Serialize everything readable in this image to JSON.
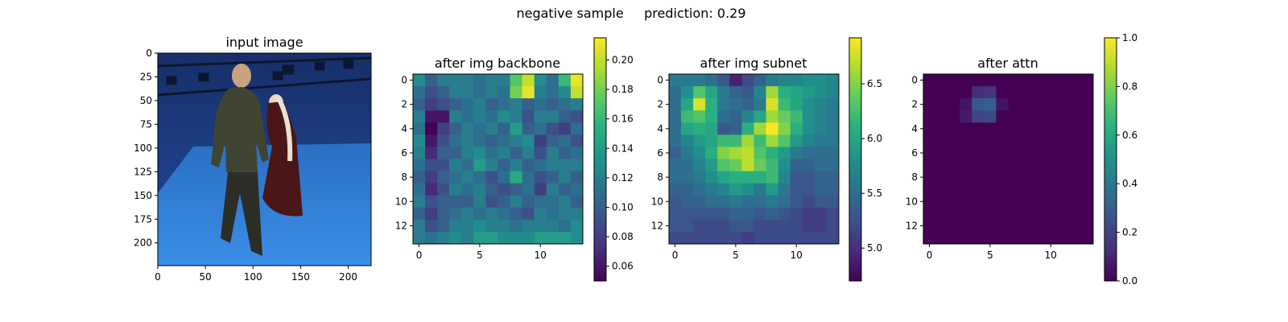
{
  "figure": {
    "suptitle": "negative sample     prediction: 0.29"
  },
  "chart_data": [
    {
      "type": "image",
      "title": "input image",
      "content": "photo: two people standing on a blue floor in a motion-capture studio",
      "xlim": [
        0,
        224
      ],
      "ylim": [
        224,
        0
      ],
      "x_ticks": [
        "0",
        "50",
        "100",
        "150",
        "200"
      ],
      "y_ticks": [
        "0",
        "25",
        "50",
        "75",
        "100",
        "125",
        "150",
        "175",
        "200"
      ],
      "colors": {
        "backdrop": "#1d3e86",
        "floor": "#2f7fd6",
        "rig": "#0c1630"
      }
    },
    {
      "type": "heatmap",
      "title": "after img backbone",
      "colormap": "viridis",
      "vmin": 0.05,
      "vmax": 0.215,
      "x_ticks": [
        "0",
        "5",
        "10"
      ],
      "y_ticks": [
        "0",
        "2",
        "4",
        "6",
        "8",
        "10",
        "12"
      ],
      "colorbar_ticks": [
        "0.06",
        "0.08",
        "0.10",
        "0.12",
        "0.14",
        "0.16",
        "0.18",
        "0.20"
      ],
      "values": [
        [
          0.13,
          0.1,
          0.12,
          0.12,
          0.12,
          0.11,
          0.12,
          0.12,
          0.17,
          0.2,
          0.13,
          0.11,
          0.16,
          0.21
        ],
        [
          0.11,
          0.09,
          0.1,
          0.12,
          0.12,
          0.11,
          0.12,
          0.11,
          0.18,
          0.21,
          0.12,
          0.11,
          0.13,
          0.2
        ],
        [
          0.1,
          0.08,
          0.09,
          0.1,
          0.11,
          0.12,
          0.1,
          0.11,
          0.12,
          0.1,
          0.11,
          0.1,
          0.11,
          0.12
        ],
        [
          0.12,
          0.06,
          0.06,
          0.12,
          0.11,
          0.12,
          0.11,
          0.13,
          0.12,
          0.09,
          0.12,
          0.12,
          0.1,
          0.09
        ],
        [
          0.11,
          0.05,
          0.08,
          0.1,
          0.12,
          0.11,
          0.12,
          0.1,
          0.14,
          0.1,
          0.11,
          0.09,
          0.08,
          0.11
        ],
        [
          0.13,
          0.06,
          0.09,
          0.11,
          0.12,
          0.11,
          0.1,
          0.11,
          0.12,
          0.13,
          0.08,
          0.1,
          0.11,
          0.09
        ],
        [
          0.12,
          0.07,
          0.1,
          0.1,
          0.12,
          0.13,
          0.11,
          0.12,
          0.1,
          0.12,
          0.09,
          0.12,
          0.1,
          0.11
        ],
        [
          0.11,
          0.09,
          0.09,
          0.12,
          0.11,
          0.14,
          0.12,
          0.1,
          0.12,
          0.1,
          0.11,
          0.12,
          0.12,
          0.12
        ],
        [
          0.1,
          0.08,
          0.1,
          0.11,
          0.12,
          0.11,
          0.09,
          0.11,
          0.15,
          0.11,
          0.09,
          0.1,
          0.12,
          0.1
        ],
        [
          0.11,
          0.07,
          0.09,
          0.12,
          0.11,
          0.12,
          0.1,
          0.09,
          0.1,
          0.11,
          0.08,
          0.12,
          0.1,
          0.11
        ],
        [
          0.12,
          0.09,
          0.1,
          0.1,
          0.1,
          0.12,
          0.09,
          0.1,
          0.12,
          0.1,
          0.11,
          0.11,
          0.12,
          0.1
        ],
        [
          0.1,
          0.08,
          0.1,
          0.11,
          0.12,
          0.11,
          0.12,
          0.11,
          0.1,
          0.09,
          0.12,
          0.11,
          0.12,
          0.12
        ],
        [
          0.12,
          0.09,
          0.1,
          0.12,
          0.12,
          0.13,
          0.12,
          0.12,
          0.11,
          0.12,
          0.12,
          0.12,
          0.11,
          0.13
        ],
        [
          0.12,
          0.11,
          0.12,
          0.13,
          0.12,
          0.14,
          0.14,
          0.13,
          0.13,
          0.13,
          0.14,
          0.14,
          0.14,
          0.13
        ]
      ]
    },
    {
      "type": "heatmap",
      "title": "after img subnet",
      "colormap": "viridis",
      "vmin": 4.7,
      "vmax": 6.92,
      "x_ticks": [
        "0",
        "5",
        "10"
      ],
      "y_ticks": [
        "0",
        "2",
        "4",
        "6",
        "8",
        "10",
        "12"
      ],
      "colorbar_ticks": [
        "5.0",
        "5.5",
        "6.0",
        "6.5"
      ],
      "values": [
        [
          5.6,
          5.6,
          5.6,
          5.5,
          5.3,
          4.9,
          5.2,
          5.4,
          5.6,
          5.7,
          5.7,
          5.8,
          5.8,
          5.7
        ],
        [
          5.5,
          5.8,
          6.3,
          6.0,
          5.6,
          5.4,
          5.3,
          5.7,
          6.6,
          6.1,
          6.0,
          5.9,
          5.8,
          5.7
        ],
        [
          5.5,
          6.0,
          6.8,
          6.1,
          5.6,
          5.5,
          5.4,
          5.6,
          6.8,
          6.2,
          6.0,
          5.8,
          5.7,
          5.6
        ],
        [
          5.5,
          6.2,
          6.3,
          6.1,
          5.5,
          5.4,
          5.7,
          6.0,
          6.6,
          6.4,
          6.2,
          5.8,
          5.7,
          5.6
        ],
        [
          5.5,
          6.0,
          6.1,
          6.0,
          5.3,
          5.4,
          6.1,
          6.6,
          6.9,
          6.5,
          6.1,
          5.8,
          5.7,
          5.6
        ],
        [
          5.5,
          5.7,
          5.9,
          6.0,
          6.2,
          6.2,
          6.6,
          6.2,
          6.6,
          6.3,
          5.9,
          5.7,
          5.6,
          5.6
        ],
        [
          5.4,
          5.6,
          5.8,
          6.1,
          6.5,
          6.6,
          6.7,
          6.3,
          6.1,
          5.9,
          5.6,
          5.5,
          5.5,
          5.5
        ],
        [
          5.5,
          5.5,
          5.7,
          5.9,
          6.3,
          6.4,
          6.7,
          6.4,
          6.2,
          5.8,
          5.4,
          5.4,
          5.5,
          5.5
        ],
        [
          5.5,
          5.5,
          5.6,
          5.8,
          6.0,
          6.1,
          6.1,
          6.1,
          6.2,
          5.7,
          5.3,
          5.3,
          5.4,
          5.4
        ],
        [
          5.4,
          5.4,
          5.5,
          5.6,
          5.7,
          5.9,
          5.8,
          5.6,
          5.9,
          5.6,
          5.3,
          5.3,
          5.4,
          5.4
        ],
        [
          5.3,
          5.4,
          5.4,
          5.5,
          5.5,
          5.6,
          5.5,
          5.5,
          5.6,
          5.5,
          5.3,
          5.2,
          5.3,
          5.3
        ],
        [
          5.3,
          5.3,
          5.3,
          5.3,
          5.3,
          5.4,
          5.4,
          5.3,
          5.4,
          5.3,
          5.2,
          5.1,
          5.1,
          5.2
        ],
        [
          5.3,
          5.3,
          5.2,
          5.2,
          5.2,
          5.3,
          5.3,
          5.2,
          5.2,
          5.2,
          5.2,
          5.1,
          5.1,
          5.2
        ],
        [
          5.2,
          5.2,
          5.2,
          5.2,
          5.2,
          5.2,
          5.1,
          5.2,
          5.2,
          5.2,
          5.2,
          5.2,
          5.2,
          5.2
        ]
      ]
    },
    {
      "type": "heatmap",
      "title": "after attn",
      "colormap": "viridis",
      "vmin": 0.0,
      "vmax": 1.0,
      "x_ticks": [
        "0",
        "5",
        "10"
      ],
      "y_ticks": [
        "0",
        "2",
        "4",
        "6",
        "8",
        "10",
        "12"
      ],
      "colorbar_ticks": [
        "0.0",
        "0.2",
        "0.4",
        "0.6",
        "0.8",
        "1.0"
      ],
      "values": [
        [
          0,
          0,
          0,
          0,
          0,
          0,
          0,
          0,
          0,
          0,
          0,
          0,
          0,
          0
        ],
        [
          0,
          0,
          0,
          0,
          0.13,
          0.15,
          0,
          0,
          0,
          0,
          0,
          0,
          0,
          0
        ],
        [
          0,
          0,
          0,
          0.05,
          0.27,
          0.3,
          0.05,
          0,
          0,
          0,
          0,
          0,
          0,
          0
        ],
        [
          0,
          0,
          0,
          0.07,
          0.2,
          0.22,
          0,
          0,
          0,
          0,
          0,
          0,
          0,
          0
        ],
        [
          0,
          0,
          0,
          0,
          0,
          0,
          0,
          0,
          0,
          0,
          0,
          0,
          0,
          0
        ],
        [
          0,
          0,
          0,
          0,
          0,
          0,
          0,
          0,
          0,
          0,
          0,
          0,
          0,
          0
        ],
        [
          0,
          0,
          0,
          0,
          0,
          0,
          0,
          0,
          0,
          0,
          0,
          0,
          0,
          0
        ],
        [
          0,
          0,
          0,
          0,
          0,
          0,
          0,
          0,
          0,
          0,
          0,
          0,
          0,
          0
        ],
        [
          0,
          0,
          0,
          0,
          0,
          0,
          0,
          0,
          0,
          0,
          0,
          0,
          0,
          0
        ],
        [
          0,
          0,
          0,
          0,
          0,
          0,
          0,
          0,
          0,
          0,
          0,
          0,
          0,
          0
        ],
        [
          0,
          0,
          0,
          0,
          0,
          0,
          0,
          0,
          0,
          0,
          0,
          0,
          0,
          0
        ],
        [
          0,
          0,
          0,
          0,
          0,
          0,
          0,
          0,
          0,
          0,
          0,
          0,
          0,
          0
        ],
        [
          0,
          0,
          0,
          0,
          0,
          0,
          0,
          0,
          0,
          0,
          0,
          0,
          0,
          0
        ],
        [
          0,
          0,
          0,
          0,
          0,
          0,
          0,
          0,
          0,
          0,
          0,
          0,
          0,
          0
        ]
      ]
    }
  ]
}
